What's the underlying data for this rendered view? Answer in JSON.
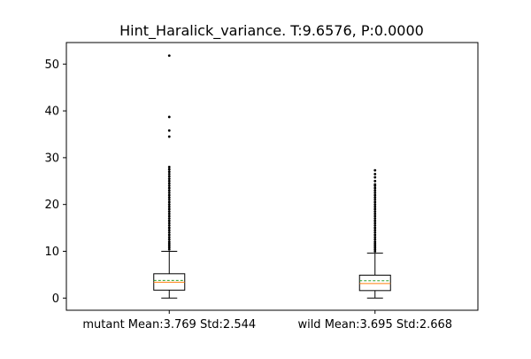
{
  "chart_data": {
    "type": "boxplot",
    "title": "Hint_Haralick_variance. T:9.6576, P:0.0000",
    "categories": [
      "mutant Mean:3.769 Std:2.544",
      "wild Mean:3.695 Std:2.668"
    ],
    "ylim": [
      -2.6,
      54.6
    ],
    "yticks": [
      0,
      10,
      20,
      30,
      40,
      50
    ],
    "grid": false,
    "boxes": [
      {
        "name": "mutant Mean:3.769 Std:2.544",
        "whisker_low": 0.0,
        "q1": 1.7,
        "median": 3.4,
        "mean": 3.769,
        "q3": 5.2,
        "whisker_high": 10.0,
        "fliers": [
          10.4,
          10.8,
          11.2,
          11.6,
          12.0,
          12.5,
          13.0,
          13.5,
          14.0,
          14.5,
          15.0,
          15.5,
          16.0,
          16.5,
          17.0,
          17.5,
          18.0,
          18.5,
          19.0,
          19.5,
          20.0,
          20.5,
          21.0,
          21.5,
          22.0,
          22.5,
          23.0,
          23.5,
          24.0,
          24.5,
          25.0,
          25.5,
          26.0,
          26.5,
          27.0,
          27.5,
          28.0,
          34.5,
          35.8,
          38.7,
          51.8
        ]
      },
      {
        "name": "wild Mean:3.695 Std:2.668",
        "whisker_low": 0.0,
        "q1": 1.6,
        "median": 3.1,
        "mean": 3.695,
        "q3": 4.9,
        "whisker_high": 9.6,
        "fliers": [
          10.0,
          10.4,
          10.8,
          11.2,
          11.6,
          12.0,
          12.5,
          13.0,
          13.5,
          14.0,
          14.5,
          15.0,
          15.5,
          16.0,
          16.5,
          17.0,
          17.5,
          18.0,
          18.5,
          19.0,
          19.5,
          20.0,
          20.5,
          21.0,
          21.5,
          22.0,
          22.5,
          23.0,
          23.5,
          24.0,
          24.3,
          25.0,
          25.8,
          26.5,
          27.3
        ]
      }
    ],
    "colors": {
      "box": "#000000",
      "median": "#ff7f0e",
      "mean": "#2ca02c",
      "flier": "#000000"
    }
  }
}
